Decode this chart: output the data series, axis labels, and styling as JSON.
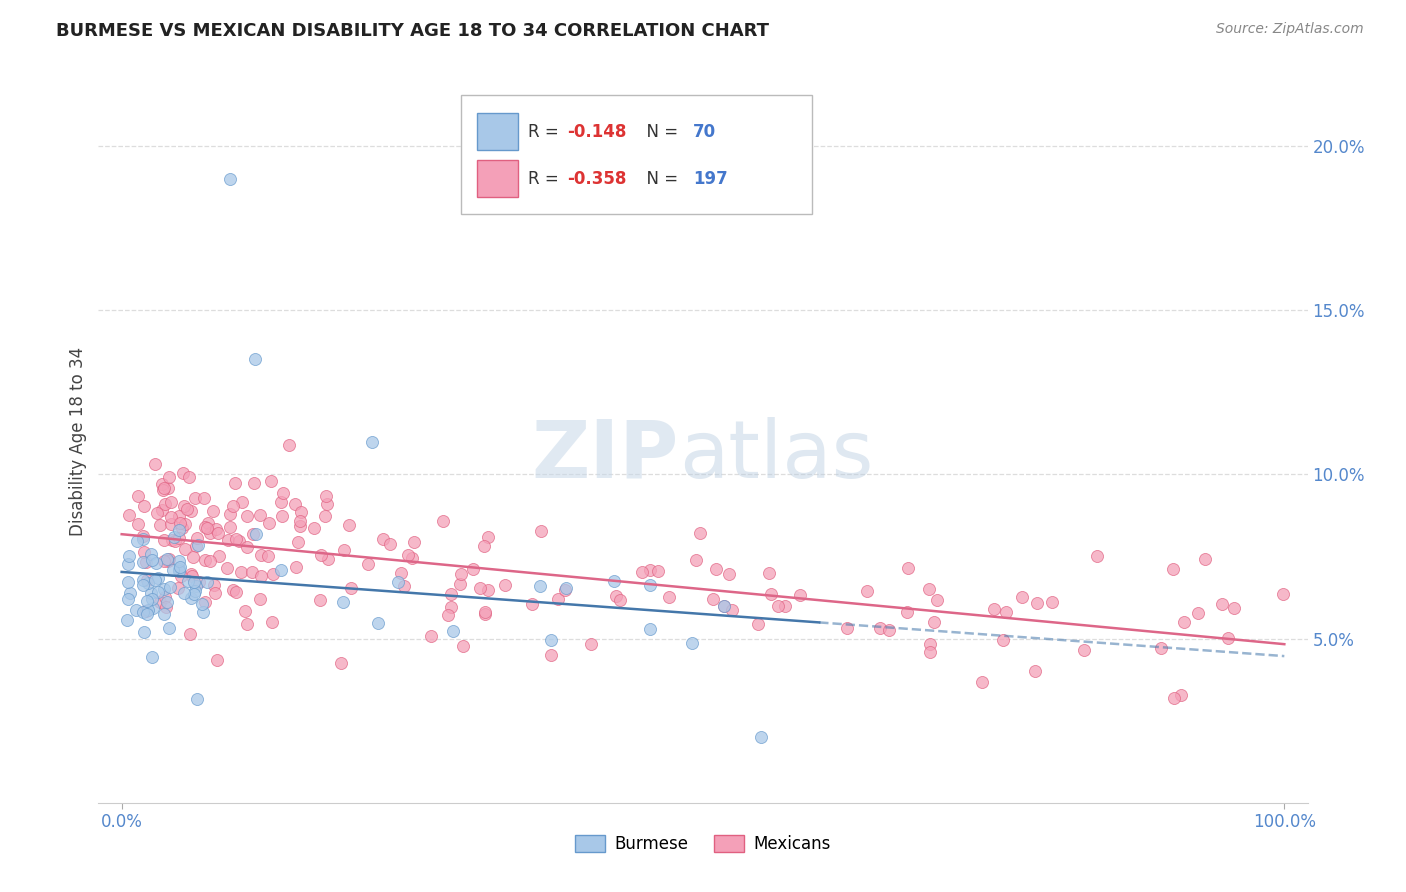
{
  "title": "BURMESE VS MEXICAN DISABILITY AGE 18 TO 34 CORRELATION CHART",
  "source": "Source: ZipAtlas.com",
  "ylabel": "Disability Age 18 to 34",
  "xlabel": "",
  "xlim": [
    -0.02,
    1.02
  ],
  "ylim": [
    0.0,
    0.22
  ],
  "ytick_vals": [
    0.05,
    0.1,
    0.15,
    0.2
  ],
  "ytick_labels": [
    "5.0%",
    "10.0%",
    "15.0%",
    "20.0%"
  ],
  "xtick_vals": [
    0.0,
    1.0
  ],
  "xtick_labels": [
    "0.0%",
    "100.0%"
  ],
  "burmese_fill_color": "#a8c8e8",
  "burmese_edge_color": "#6699cc",
  "mexican_fill_color": "#f4a0b8",
  "mexican_edge_color": "#e06080",
  "burmese_line_color": "#4477aa",
  "mexican_line_color": "#dd6688",
  "tick_color": "#5588cc",
  "background_color": "#ffffff",
  "grid_color": "#dddddd",
  "legend_label_burmese": "Burmese",
  "legend_label_mexican": "Mexicans",
  "watermark_zip_color": "#c8d8e8",
  "watermark_atlas_color": "#b8cce0"
}
